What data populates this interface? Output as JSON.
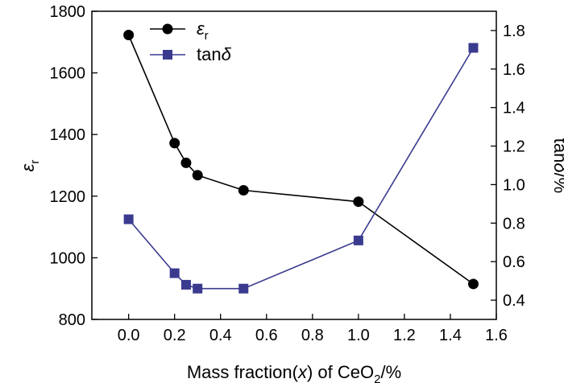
{
  "chart_data": {
    "type": "line",
    "xlabel": "Mass fraction(x) of CeO2/%",
    "ylabel_left": "εr",
    "ylabel_right": "tanδ/%",
    "x_ticks": [
      "0.0",
      "0.2",
      "0.4",
      "0.6",
      "0.8",
      "1.0",
      "1.2",
      "1.4",
      "1.6"
    ],
    "y_left_ticks": [
      "800",
      "1000",
      "1200",
      "1400",
      "1600",
      "1800"
    ],
    "y_right_ticks": [
      "0.4",
      "0.6",
      "0.8",
      "1.0",
      "1.2",
      "1.4",
      "1.6",
      "1.8"
    ],
    "xlim": [
      -0.16,
      1.6
    ],
    "ylim_left": [
      800,
      1800
    ],
    "ylim_right": [
      0.3,
      1.9
    ],
    "grid": false,
    "legend_position": "top-left",
    "series": [
      {
        "name": "εr",
        "axis": "left",
        "marker": "circle",
        "color": "#000000",
        "x": [
          0.0,
          0.2,
          0.25,
          0.3,
          0.5,
          1.0,
          1.5
        ],
        "values": [
          1723,
          1372,
          1308,
          1268,
          1219,
          1182,
          915
        ]
      },
      {
        "name": "tanδ",
        "axis": "right",
        "marker": "square",
        "color": "#3a3a8f",
        "x": [
          0.0,
          0.2,
          0.25,
          0.3,
          0.5,
          1.0,
          1.5
        ],
        "values": [
          0.82,
          0.54,
          0.48,
          0.46,
          0.46,
          0.71,
          1.71
        ]
      }
    ]
  }
}
